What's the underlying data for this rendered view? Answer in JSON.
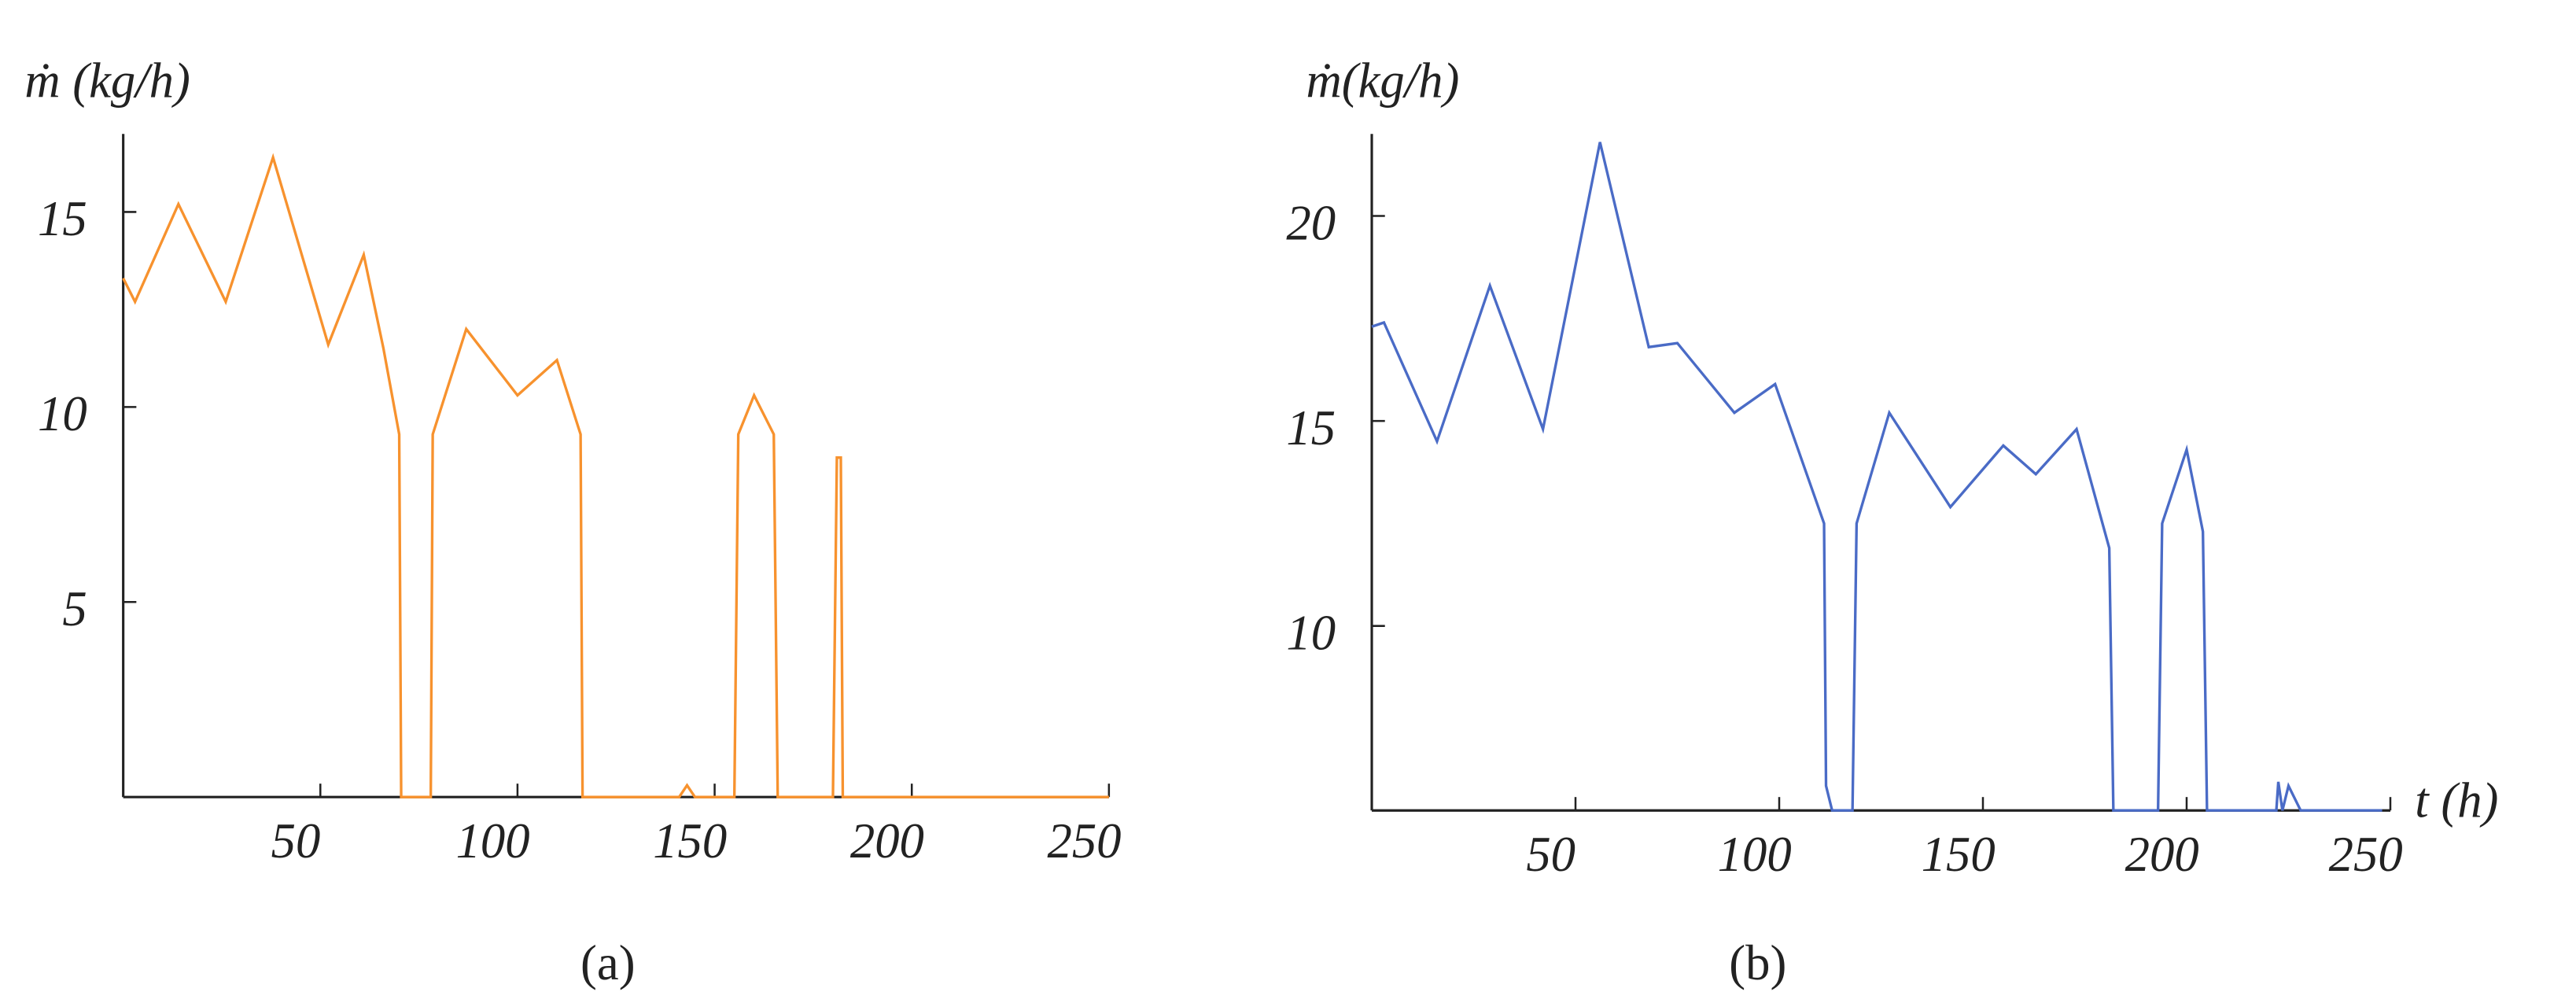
{
  "chart_data": [
    {
      "type": "line",
      "ylabel": "ṁ (kg/h)",
      "caption": "(a)",
      "color": "#f7922e",
      "xlim": [
        0,
        250
      ],
      "ylim": [
        0,
        17
      ],
      "xticks": [
        50,
        100,
        150,
        200,
        250
      ],
      "yticks": [
        5,
        10,
        15
      ],
      "x": [
        0,
        3,
        14,
        26,
        38,
        52,
        61,
        66,
        70,
        70.5,
        78,
        78.5,
        87,
        100,
        110,
        116,
        116.5,
        141,
        143,
        145,
        155,
        156,
        160,
        165,
        166,
        180,
        181,
        182,
        182.5,
        250
      ],
      "values": [
        13.3,
        12.7,
        15.2,
        12.7,
        16.4,
        11.6,
        13.9,
        11.5,
        9.3,
        0,
        0,
        9.3,
        12.0,
        10.3,
        11.2,
        9.3,
        0,
        0,
        0.3,
        0,
        0,
        9.3,
        10.3,
        9.3,
        0,
        0,
        8.7,
        8.7,
        0,
        0
      ]
    },
    {
      "type": "line",
      "ylabel": "ṁ(kg/h)",
      "xlabel": "t (h)",
      "caption": "(b)",
      "color": "#4a6bc6",
      "xlim": [
        0,
        250
      ],
      "ylim": [
        5.5,
        22
      ],
      "xticks": [
        50,
        100,
        150,
        200,
        250
      ],
      "yticks": [
        10,
        15,
        20
      ],
      "x": [
        0,
        3,
        16,
        29,
        42,
        56,
        68,
        75,
        89,
        99,
        111,
        111.5,
        113,
        118,
        119,
        127,
        142,
        155,
        163,
        173,
        181,
        182,
        193,
        194,
        200,
        204,
        205,
        222,
        222.5,
        223.5,
        225,
        228,
        248
      ],
      "values": [
        17.3,
        17.4,
        14.5,
        18.3,
        14.8,
        21.8,
        16.8,
        16.9,
        15.2,
        15.9,
        12.5,
        6.1,
        5.5,
        5.5,
        12.5,
        15.2,
        12.9,
        14.4,
        13.7,
        14.8,
        11.9,
        5.5,
        5.5,
        12.5,
        14.3,
        12.3,
        5.5,
        5.5,
        6.2,
        5.5,
        6.1,
        5.5,
        5.5
      ]
    }
  ]
}
